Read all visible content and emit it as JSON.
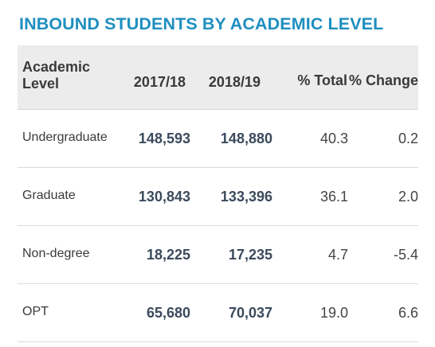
{
  "title": "INBOUND STUDENTS BY ACADEMIC LEVEL",
  "table": {
    "headers": [
      "Academic Level",
      "2017/18",
      "2018/19",
      "% Total",
      "% Change"
    ],
    "rows": [
      [
        "Undergraduate",
        "148,593",
        "148,880",
        "40.3",
        "0.2"
      ],
      [
        "Graduate",
        "130,843",
        "133,396",
        "36.1",
        "2.0"
      ],
      [
        "Non-degree",
        "18,225",
        "17,235",
        "4.7",
        "-5.4"
      ],
      [
        "OPT",
        "65,680",
        "70,037",
        "19.0",
        "6.6"
      ]
    ]
  },
  "colors": {
    "title": "#1f8fc0",
    "header_bg": "#ececec",
    "numbers_bold": "#3b4a5c"
  }
}
